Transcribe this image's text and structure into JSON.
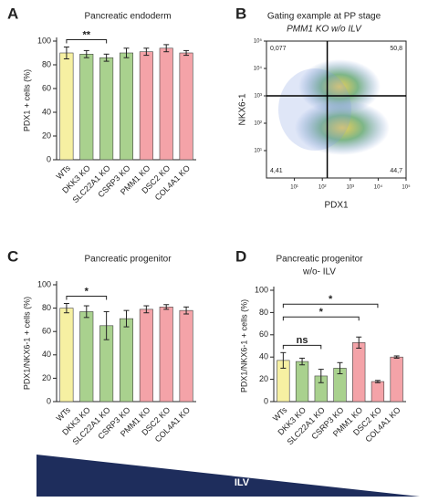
{
  "chart_data": [
    {
      "type": "bar",
      "panel": "A",
      "title": "Pancreatic endoderm",
      "ylabel": "PDX1 + cells (%)",
      "categories": [
        "WTs",
        "DKK3 KO",
        "SLC22A1 KO",
        "CSRP3 KO",
        "PMM1 KO",
        "DSC2 KO",
        "COL4A1 KO"
      ],
      "values": [
        90,
        89,
        86,
        90,
        91,
        94,
        90
      ],
      "errors": [
        5,
        3,
        3,
        4,
        3,
        3,
        2
      ],
      "colors": [
        "#f6f0a2",
        "#a9d18e",
        "#a9d18e",
        "#a9d18e",
        "#f4a3a8",
        "#f4a3a8",
        "#f4a3a8"
      ],
      "ylim": [
        0,
        100
      ],
      "yticks": [
        0,
        20,
        40,
        60,
        80,
        100
      ],
      "comparisons": [
        {
          "label": "**",
          "groups": [
            "WTs",
            "SLC22A1 KO"
          ]
        }
      ]
    },
    {
      "type": "scatter",
      "panel": "B",
      "title": "Gating example at PP stage",
      "subtitle": "PMM1 KO w/o ILV",
      "xlabel": "PDX1",
      "ylabel": "NKX6-1",
      "log": true,
      "xlim": [
        1,
        100000
      ],
      "ylim": [
        1,
        100000
      ],
      "xticks": [
        {
          "value": 10,
          "label": "10¹"
        },
        {
          "value": 100,
          "label": "10²"
        },
        {
          "value": 1000,
          "label": "10³"
        },
        {
          "value": 10000,
          "label": "10⁴"
        },
        {
          "value": 100000,
          "label": "10⁵"
        }
      ],
      "yticks": [
        {
          "value": 10,
          "label": "10¹"
        },
        {
          "value": 100,
          "label": "10²"
        },
        {
          "value": 1000,
          "label": "10³"
        },
        {
          "value": 10000,
          "label": "10⁴"
        },
        {
          "value": 100000,
          "label": "10⁵"
        }
      ],
      "gates": {
        "x": 150,
        "y": 1000
      },
      "quadrants": [
        {
          "text": "0,077",
          "corner": "top-left"
        },
        {
          "text": "50,8",
          "corner": "top-right"
        },
        {
          "text": "4,41",
          "corner": "bottom-left"
        },
        {
          "text": "44,7",
          "corner": "bottom-right"
        }
      ]
    },
    {
      "type": "bar",
      "panel": "C",
      "title": "Pancreatic progenitor",
      "ylabel": "PDX1/NKX6-1 + cells (%)",
      "categories": [
        "WTs",
        "DKK3 KO",
        "SLC22A1 KO",
        "CSRP3 KO",
        "PMM1 KO",
        "DSC2 KO",
        "COL4A1 KO"
      ],
      "values": [
        80,
        77,
        65,
        71,
        79,
        81,
        78
      ],
      "errors": [
        4,
        5,
        12,
        7,
        3,
        2,
        3
      ],
      "colors": [
        "#f6f0a2",
        "#a9d18e",
        "#a9d18e",
        "#a9d18e",
        "#f4a3a8",
        "#f4a3a8",
        "#f4a3a8"
      ],
      "ylim": [
        0,
        100
      ],
      "yticks": [
        0,
        20,
        40,
        60,
        80,
        100
      ],
      "comparisons": [
        {
          "label": "*",
          "groups": [
            "WTs",
            "SLC22A1 KO"
          ]
        }
      ]
    },
    {
      "type": "bar",
      "panel": "D",
      "title": "Pancreatic progenitor",
      "subtitle": "w/o- ILV",
      "ylabel": "PDX1/NKX6-1 + cells (%)",
      "categories": [
        "WTs",
        "DKK3 KO",
        "SLC22A1 KO",
        "CSRP3 KO",
        "PMM1 KO",
        "DSC2 KO",
        "COL4A1 KO"
      ],
      "values": [
        37,
        36,
        23,
        30,
        53,
        18,
        40
      ],
      "errors": [
        7,
        3,
        6,
        5,
        5,
        1,
        1
      ],
      "colors": [
        "#f6f0a2",
        "#a9d18e",
        "#a9d18e",
        "#a9d18e",
        "#f4a3a8",
        "#f4a3a8",
        "#f4a3a8"
      ],
      "ylim": [
        0,
        100
      ],
      "yticks": [
        0,
        20,
        40,
        60,
        80,
        100
      ],
      "comparisons": [
        {
          "label": "ns",
          "groups": [
            "WTs",
            "SLC22A1 KO"
          ]
        },
        {
          "label": "*",
          "groups": [
            "WTs",
            "PMM1 KO"
          ]
        },
        {
          "label": "*",
          "groups": [
            "WTs",
            "DSC2 KO"
          ]
        }
      ]
    }
  ],
  "gradient_label": "ILV"
}
